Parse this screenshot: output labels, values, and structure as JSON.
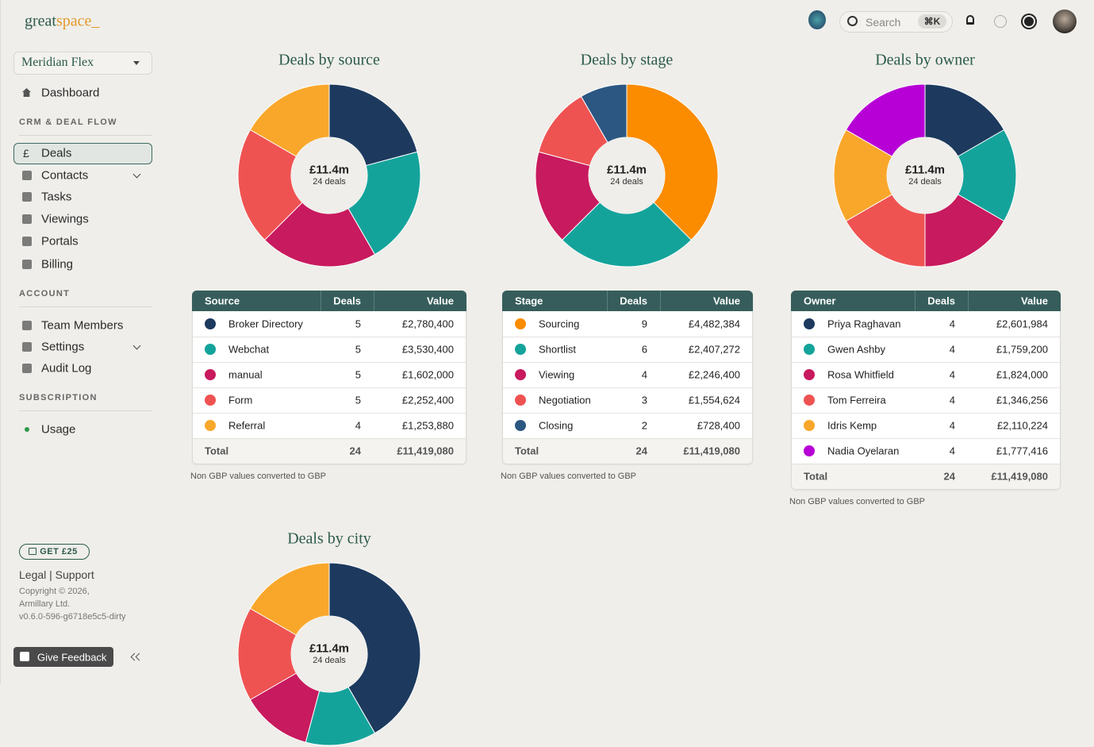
{
  "header": {
    "logo_first": "great",
    "logo_second": "space_",
    "search": "Search",
    "shortcut": "⌘K"
  },
  "sidebar": {
    "workspace": "Meridian Flex",
    "dashboard": "Dashboard",
    "deals_icon": "£",
    "sections": [
      {
        "title": "CRM & DEAL FLOW",
        "items": [
          "Deals",
          "Contacts",
          "Tasks",
          "Viewings",
          "Portals",
          "Billing"
        ]
      },
      {
        "title": "ACCOUNT",
        "items": [
          "Team Members",
          "Settings",
          "Audit Log"
        ]
      },
      {
        "title": "SUBSCRIPTION",
        "items": [
          "Usage"
        ]
      }
    ],
    "promo": "GET £25",
    "links": "Legal | Support",
    "copyright": [
      "Copyright © 2026,",
      "Armillary Ltd.",
      "v0.6.0-596-g6718e5c5-dirty"
    ],
    "feedback": "Give Feedback"
  },
  "chart_data": [
    {
      "type": "donut",
      "title": "Deals by source",
      "center_value": "£11.4m",
      "center_label": "24 deals",
      "categories": [
        "Broker Directory",
        "Webchat",
        "manual",
        "Form",
        "Referral"
      ],
      "values": [
        5,
        5,
        5,
        5,
        4
      ],
      "colors": [
        "#1d3a5e",
        "#14a39b",
        "#c81a5e",
        "#ee5352",
        "#f9a72b"
      ],
      "table": {
        "columns": [
          "Source",
          "Deals",
          "Value"
        ],
        "amounts": [
          "£2,780,400",
          "£3,530,400",
          "£1,602,000",
          "£2,252,400",
          "£1,253,880"
        ],
        "total_label": "Total",
        "total_deals": 24,
        "total_amount": "£11,419,080"
      },
      "note": "Non GBP values converted to GBP"
    },
    {
      "type": "donut",
      "title": "Deals by stage",
      "center_value": "£11.4m",
      "center_label": "24 deals",
      "categories": [
        "Sourcing",
        "Shortlist",
        "Viewing",
        "Negotiation",
        "Closing"
      ],
      "values": [
        9,
        6,
        4,
        3,
        2
      ],
      "colors": [
        "#fb8c00",
        "#14a39b",
        "#c81a5e",
        "#ee5352",
        "#2b5782"
      ],
      "table": {
        "columns": [
          "Stage",
          "Deals",
          "Value"
        ],
        "amounts": [
          "£4,482,384",
          "£2,407,272",
          "£2,246,400",
          "£1,554,624",
          "£728,400"
        ],
        "total_label": "Total",
        "total_deals": 24,
        "total_amount": "£11,419,080"
      },
      "note": "Non GBP values converted to GBP"
    },
    {
      "type": "donut",
      "title": "Deals by owner",
      "center_value": "£11.4m",
      "center_label": "24 deals",
      "categories": [
        "Priya Raghavan",
        "Gwen Ashby",
        "Rosa Whitfield",
        "Tom Ferreira",
        "Idris Kemp",
        "Nadia Oyelaran"
      ],
      "values": [
        4,
        4,
        4,
        4,
        4,
        4
      ],
      "colors": [
        "#1d3a5e",
        "#14a39b",
        "#c81a5e",
        "#ee5352",
        "#f9a72b",
        "#b700d6"
      ],
      "table": {
        "columns": [
          "Owner",
          "Deals",
          "Value"
        ],
        "amounts": [
          "£2,601,984",
          "£1,759,200",
          "£1,824,000",
          "£1,346,256",
          "£2,110,224",
          "£1,777,416"
        ],
        "total_label": "Total",
        "total_deals": 24,
        "total_amount": "£11,419,080"
      },
      "note": "Non GBP values converted to GBP"
    },
    {
      "type": "donut",
      "title": "Deals by city",
      "center_value": "£11.4m",
      "center_label": "24 deals",
      "values": [
        10,
        3,
        3,
        4,
        4
      ],
      "colors": [
        "#1d3a5e",
        "#14a39b",
        "#c81a5e",
        "#ee5352",
        "#f9a72b"
      ]
    }
  ]
}
